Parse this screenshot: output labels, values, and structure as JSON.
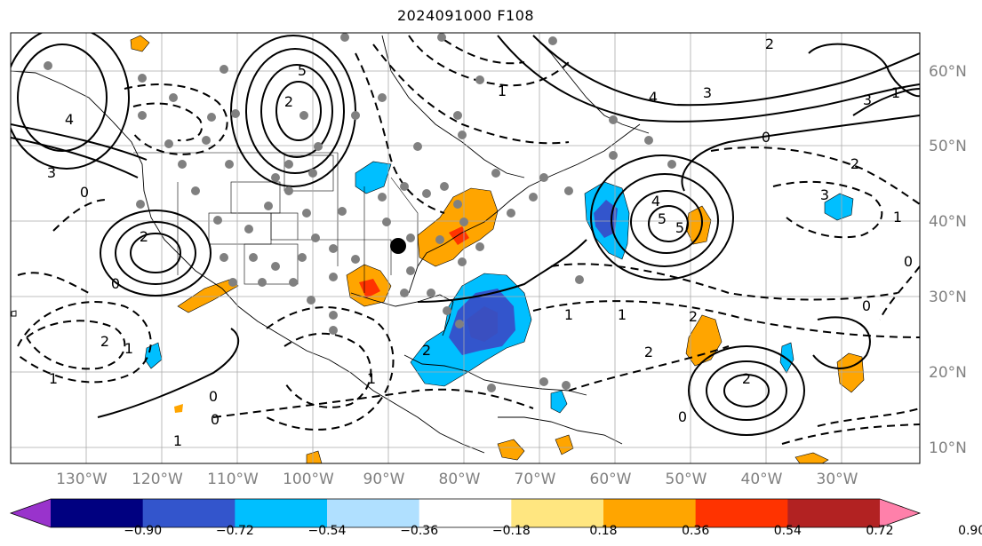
{
  "title": "2024091000 F108",
  "lat_labels": [
    "60°N",
    "50°N",
    "40°N",
    "30°N",
    "20°N",
    "10°N"
  ],
  "lon_labels": [
    "130°W",
    "120°W",
    "110°W",
    "100°W",
    "90°W",
    "80°W",
    "70°W",
    "60°W",
    "50°W",
    "40°W",
    "30°W"
  ],
  "colorbar": {
    "colors": [
      "#9933cc",
      "#000080",
      "#3355cc",
      "#00bfff",
      "#b0e0ff",
      "#ffffff",
      "#ffe680",
      "#ffa500",
      "#ff3300",
      "#b22222",
      "#ff80aa"
    ],
    "tick_labels": [
      "−0.90",
      "−0.72",
      "−0.54",
      "−0.36",
      "−0.18",
      "0.18",
      "0.36",
      "0.54",
      "0.72",
      "0.90"
    ]
  },
  "contour_labels": [
    "3",
    "5",
    "2",
    "4",
    "0",
    "1",
    "3",
    "4",
    "0",
    "2",
    "3",
    "2",
    "0",
    "1",
    "5",
    "2",
    "1",
    "0",
    "2",
    "1",
    "0",
    "1",
    "2",
    "1",
    "4",
    "5",
    "0",
    "0",
    "2",
    "2",
    "1",
    "0",
    "1",
    "3",
    "2",
    "1"
  ]
}
